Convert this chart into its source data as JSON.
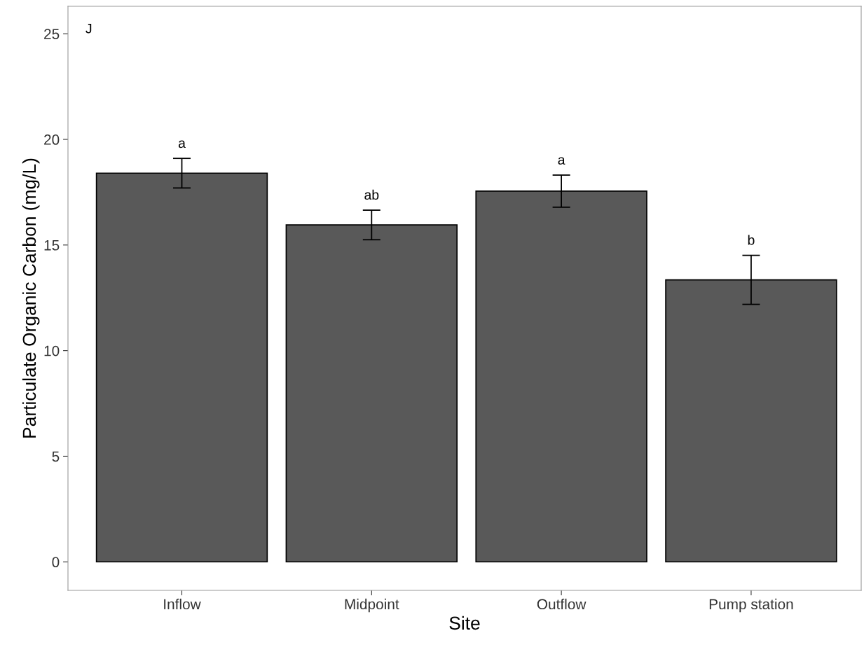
{
  "chart_data": {
    "type": "bar",
    "xlabel": "Site",
    "ylabel": "Particulate Organic Carbon (mg/L)",
    "categories": [
      "Inflow",
      "Midpoint",
      "Outflow",
      "Pump station"
    ],
    "values": [
      18.4,
      15.95,
      17.55,
      13.35
    ],
    "errors": [
      0.7,
      0.7,
      0.76,
      1.16
    ],
    "color": "#595959",
    "ylim": [
      -1.35,
      26.3
    ],
    "yticks": [
      0,
      5,
      10,
      15,
      20,
      25
    ],
    "grid": false,
    "annotations": [
      "J",
      "a",
      "ab",
      "a",
      "b"
    ]
  }
}
